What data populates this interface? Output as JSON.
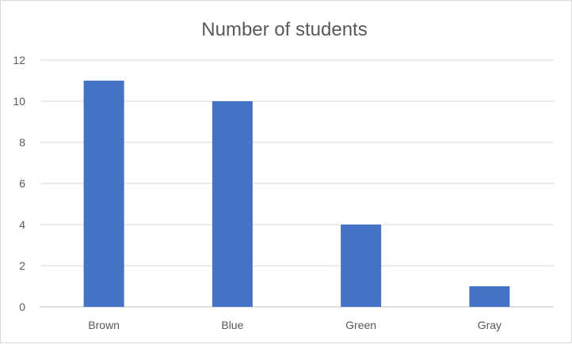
{
  "chart_data": {
    "type": "bar",
    "title": "Number of students",
    "categories": [
      "Brown",
      "Blue",
      "Green",
      "Gray"
    ],
    "values": [
      11,
      10,
      4,
      1
    ],
    "ylim": [
      0,
      12
    ],
    "yticks": [
      0,
      2,
      4,
      6,
      8,
      10,
      12
    ],
    "grid": true,
    "legend": "none",
    "bar_color": "#4472C4",
    "xlabel": "",
    "ylabel": ""
  }
}
